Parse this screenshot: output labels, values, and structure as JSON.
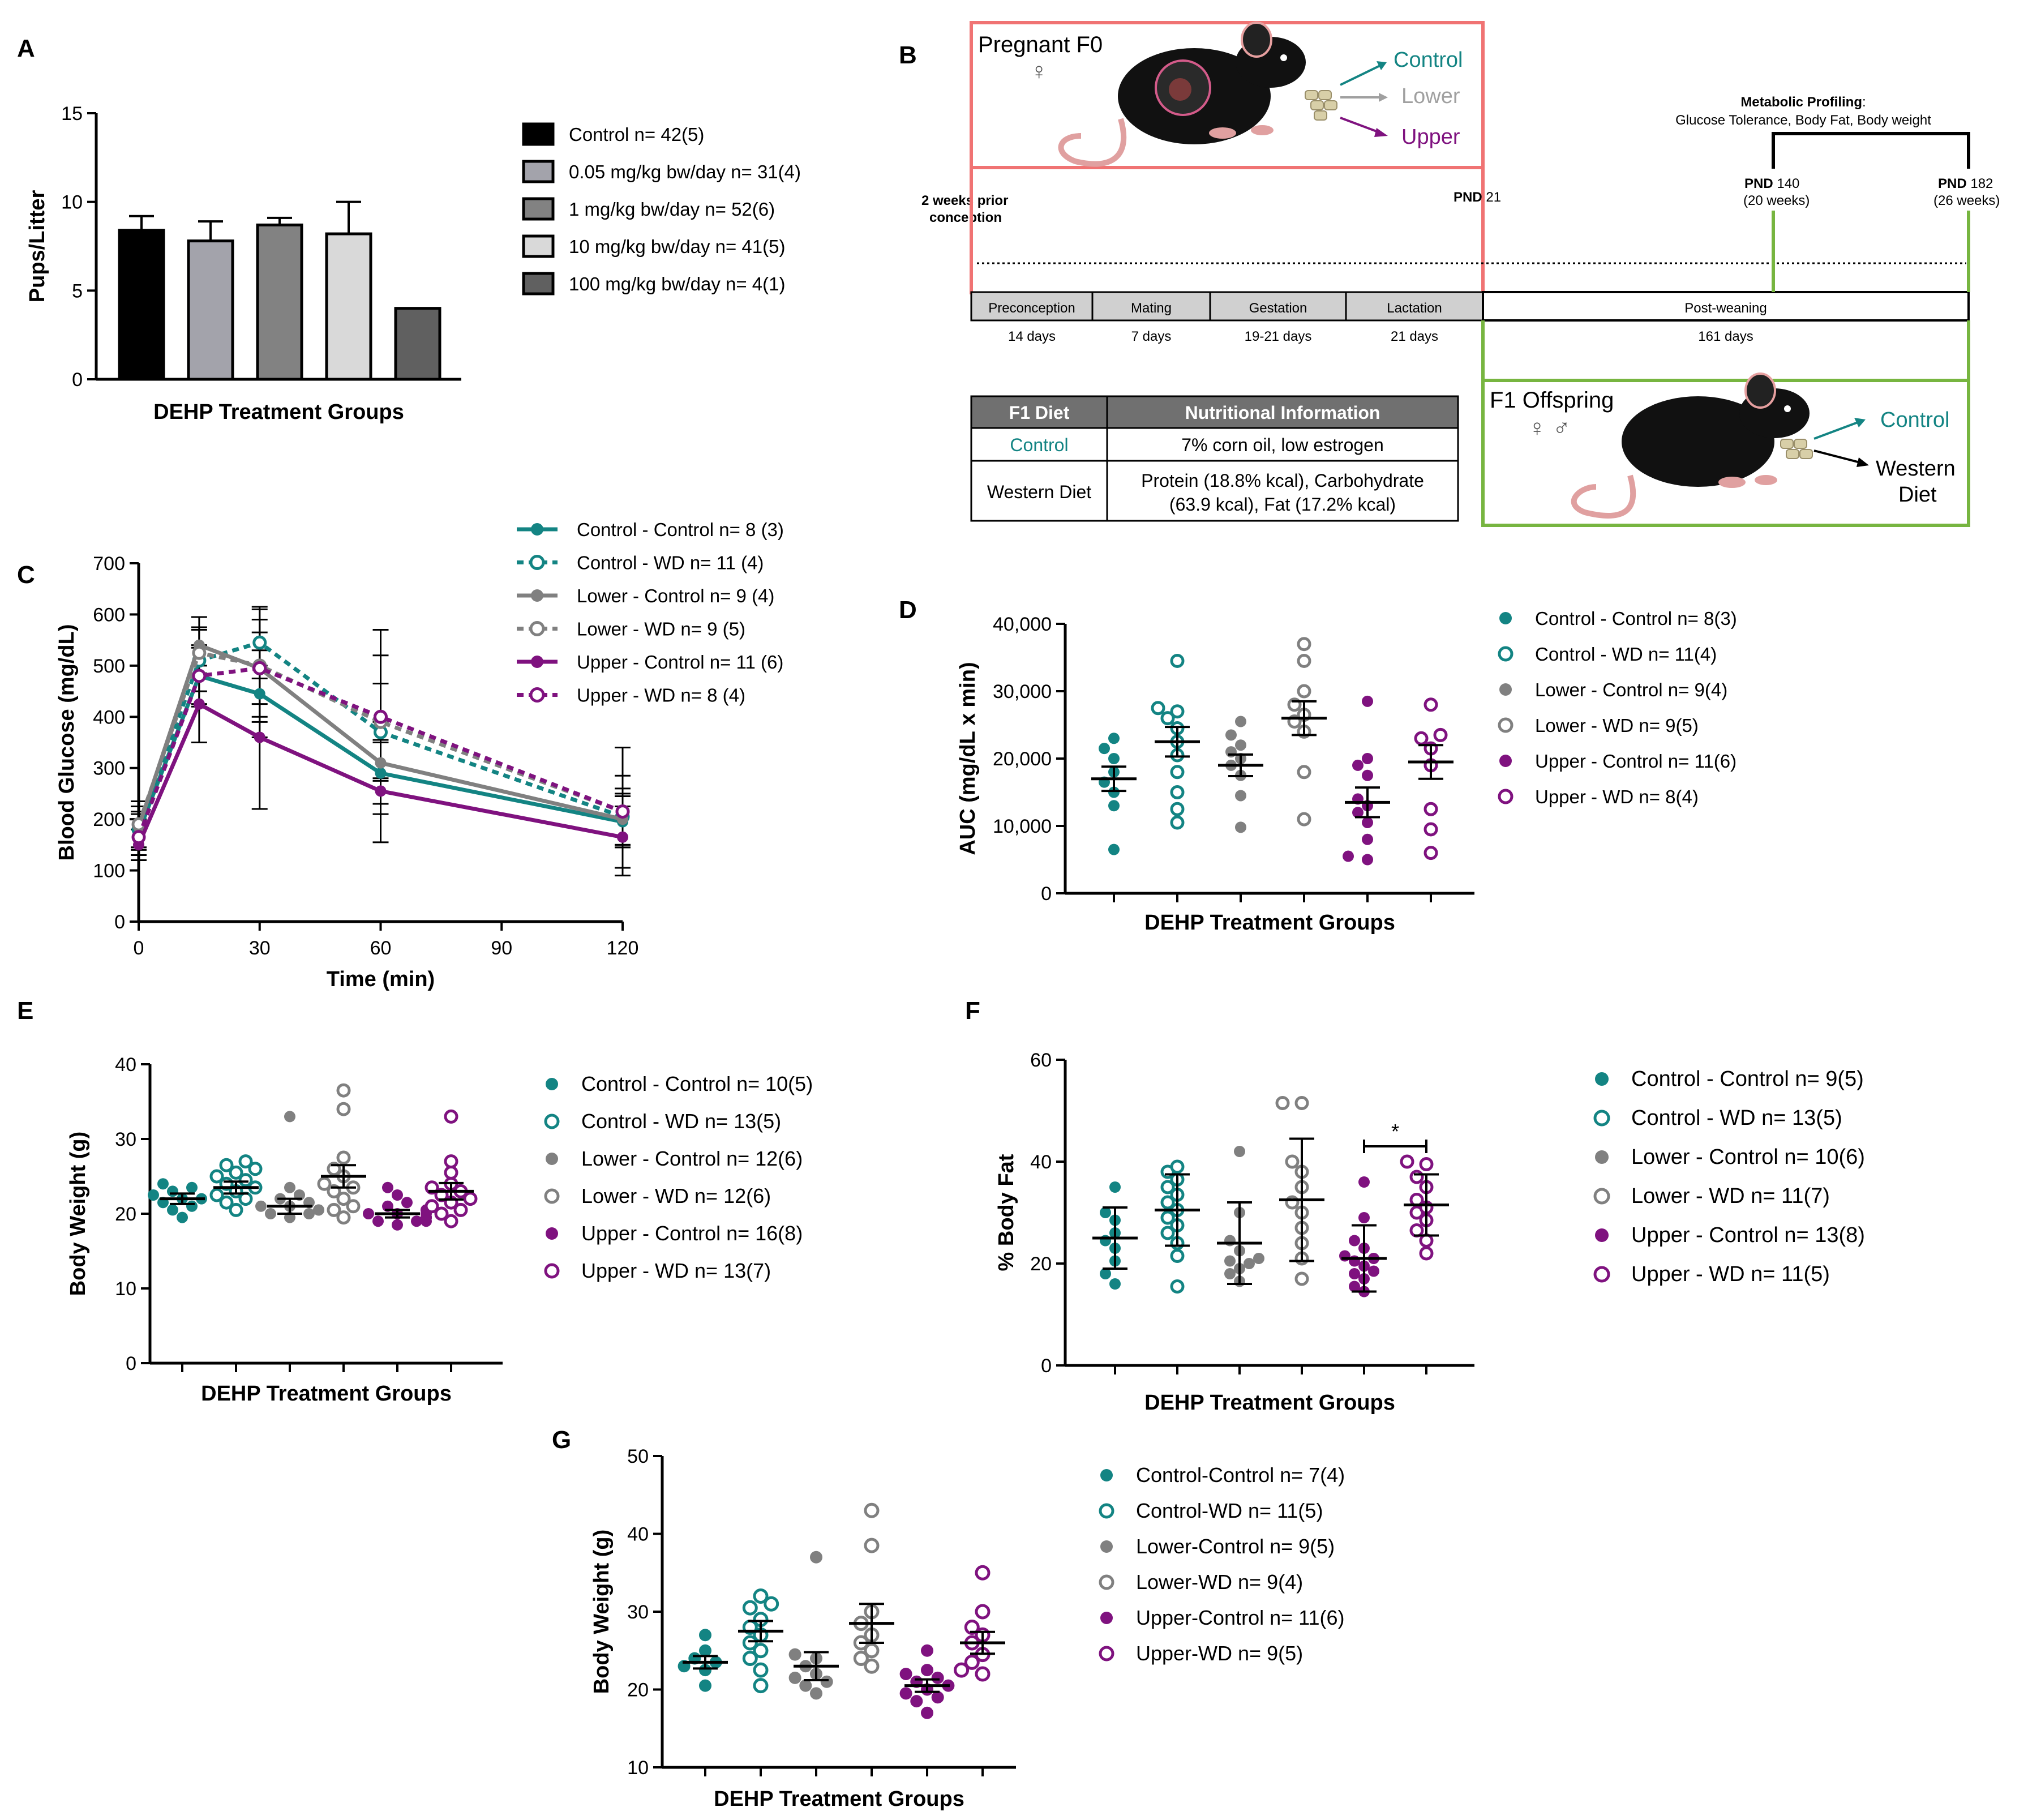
{
  "colors": {
    "teal": "#138483",
    "gray": "#808080",
    "purple": "#7f127f",
    "salmon": "#f07373",
    "green": "#77b540",
    "boxgray": "#d0d0d0",
    "headgray": "#707070"
  },
  "chart_data": [
    {
      "panel": "A",
      "type": "bar",
      "xlabel": "DEHP Treatment Groups",
      "ylabel": "Pups/Litter",
      "ylim": [
        0,
        15
      ],
      "yticks": [
        "0",
        "5",
        "10",
        "15"
      ],
      "legend_position": "right",
      "series": [
        {
          "name": "Control n= 42(5)",
          "value": 8.4,
          "err": 0.8,
          "color": "#000000"
        },
        {
          "name": "0.05 mg/kg bw/day n= 31(4)",
          "value": 7.8,
          "err": 1.1,
          "color": "#a3a3ab"
        },
        {
          "name": "1 mg/kg bw/day n= 52(6)",
          "value": 8.7,
          "err": 0.4,
          "color": "#828282"
        },
        {
          "name": "10 mg/kg bw/day n= 41(5)",
          "value": 8.2,
          "err": 1.8,
          "color": "#d9d9d9"
        },
        {
          "name": "100 mg/kg bw/day n= 4(1)",
          "value": 4.0,
          "err": 0,
          "color": "#606060"
        }
      ]
    },
    {
      "panel": "C",
      "type": "line",
      "xlabel": "Time (min)",
      "ylabel": "Blood Glucose (mg/dL)",
      "xlim": [
        0,
        120
      ],
      "ylim": [
        0,
        700
      ],
      "xticks": [
        "0",
        "30",
        "60",
        "90",
        "120"
      ],
      "yticks": [
        "0",
        "100",
        "200",
        "300",
        "400",
        "500",
        "600",
        "700"
      ],
      "x": [
        0,
        15,
        30,
        60,
        120
      ],
      "legend_position": "top-right",
      "series": [
        {
          "name": "Control - Control n= 8 (3)",
          "color": "#138483",
          "dashed": false,
          "filled": true,
          "values": [
            175,
            480,
            445,
            290,
            195
          ],
          "err": [
            35,
            60,
            85,
            60,
            50
          ]
        },
        {
          "name": "Control - WD n= 11 (4)",
          "color": "#138483",
          "dashed": true,
          "filled": false,
          "values": [
            180,
            510,
            545,
            370,
            205
          ],
          "err": [
            35,
            60,
            70,
            95,
            55
          ]
        },
        {
          "name": "Lower - Control n= 9 (4)",
          "color": "#808080",
          "dashed": false,
          "filled": true,
          "values": [
            185,
            540,
            495,
            310,
            200
          ],
          "err": [
            40,
            55,
            70,
            80,
            50
          ]
        },
        {
          "name": "Lower - WD n= 9 (5)",
          "color": "#808080",
          "dashed": true,
          "filled": false,
          "values": [
            190,
            525,
            500,
            390,
            215
          ],
          "err": [
            45,
            50,
            110,
            180,
            125
          ]
        },
        {
          "name": "Upper - Control n= 11 (6)",
          "color": "#7f127f",
          "dashed": false,
          "filled": true,
          "values": [
            150,
            425,
            360,
            255,
            165
          ],
          "err": [
            30,
            75,
            140,
            100,
            60
          ]
        },
        {
          "name": "Upper - WD n= 8 (4)",
          "color": "#7f127f",
          "dashed": true,
          "filled": false,
          "values": [
            165,
            480,
            495,
            400,
            215
          ],
          "err": [
            35,
            55,
            95,
            120,
            70
          ]
        }
      ]
    },
    {
      "panel": "D",
      "type": "scatter",
      "xlabel": "DEHP Treatment Groups",
      "ylabel": "AUC (mg/dL x min)",
      "ylim": [
        0,
        40000
      ],
      "yticks": [
        "0",
        "10,000",
        "20,000",
        "30,000",
        "40,000"
      ],
      "legend_position": "right",
      "groups": [
        {
          "name": "Control - Control n= 8(3)",
          "color": "#138483",
          "filled": true,
          "mean": 17000,
          "sem": 1800,
          "points": [
            6500,
            13000,
            15000,
            16500,
            18000,
            20000,
            21500,
            23000
          ]
        },
        {
          "name": "Control - WD n= 11(4)",
          "color": "#138483",
          "filled": false,
          "mean": 22500,
          "sem": 2200,
          "points": [
            10500,
            12500,
            15000,
            18000,
            20500,
            22500,
            24500,
            26000,
            27000,
            27500,
            34500
          ]
        },
        {
          "name": "Lower - Control n= 9(4)",
          "color": "#808080",
          "filled": true,
          "mean": 19000,
          "sem": 1600,
          "points": [
            9800,
            14500,
            17500,
            19000,
            20000,
            21000,
            22000,
            23500,
            25500
          ]
        },
        {
          "name": "Lower - WD n= 9(5)",
          "color": "#808080",
          "filled": false,
          "mean": 26000,
          "sem": 2500,
          "points": [
            11000,
            18000,
            24000,
            25500,
            26500,
            28000,
            30000,
            34500,
            37000
          ]
        },
        {
          "name": "Upper - Control n= 11(6)",
          "color": "#7f127f",
          "filled": true,
          "mean": 13500,
          "sem": 2200,
          "points": [
            5000,
            5500,
            8000,
            10500,
            12000,
            13000,
            14000,
            17500,
            19000,
            20000,
            28500
          ]
        },
        {
          "name": "Upper - WD n= 8(4)",
          "color": "#7f127f",
          "filled": false,
          "mean": 19500,
          "sem": 2500,
          "points": [
            6000,
            9500,
            12500,
            19000,
            21500,
            23000,
            23500,
            28000
          ]
        }
      ]
    },
    {
      "panel": "E",
      "type": "scatter",
      "xlabel": "DEHP Treatment Groups",
      "ylabel": "Body Weight (g)",
      "ylim": [
        0,
        40
      ],
      "yticks": [
        "0",
        "10",
        "20",
        "30",
        "40"
      ],
      "legend_position": "right",
      "groups": [
        {
          "name": "Control - Control n= 10(5)",
          "color": "#138483",
          "filled": true,
          "mean": 22,
          "sem": 0.7,
          "points": [
            19.5,
            20.5,
            21,
            21.5,
            22,
            22,
            22.5,
            23,
            23.5,
            24
          ]
        },
        {
          "name": "Control - WD n= 13(5)",
          "color": "#138483",
          "filled": false,
          "mean": 23.5,
          "sem": 0.8,
          "points": [
            20.5,
            21.5,
            22,
            22.5,
            23,
            23.5,
            24,
            24.5,
            25,
            25.5,
            26,
            26.5,
            27
          ]
        },
        {
          "name": "Lower - Control n= 12(6)",
          "color": "#808080",
          "filled": true,
          "mean": 21,
          "sem": 1.0,
          "points": [
            19.5,
            20,
            20,
            20.5,
            20.5,
            21,
            21,
            21.5,
            22,
            22.5,
            23.5,
            33
          ]
        },
        {
          "name": "Lower - WD n= 12(6)",
          "color": "#808080",
          "filled": false,
          "mean": 25,
          "sem": 1.5,
          "points": [
            19.5,
            20.5,
            21,
            22,
            23,
            23.5,
            24,
            25,
            26,
            27.5,
            34,
            36.5
          ]
        },
        {
          "name": "Upper - Control n= 16(8)",
          "color": "#7f127f",
          "filled": true,
          "mean": 20,
          "sem": 0.5,
          "points": [
            18.5,
            19,
            19,
            19,
            19.5,
            19.5,
            19.5,
            20,
            20,
            20,
            20.5,
            20.5,
            21,
            21.5,
            22.5,
            23.5
          ]
        },
        {
          "name": "Upper - WD n= 13(7)",
          "color": "#7f127f",
          "filled": false,
          "mean": 23,
          "sem": 1.1,
          "points": [
            19,
            20,
            20.5,
            21,
            21.5,
            22,
            22.5,
            23,
            23.5,
            24,
            25.5,
            27,
            33
          ]
        }
      ]
    },
    {
      "panel": "F",
      "type": "scatter",
      "xlabel": "DEHP Treatment Groups",
      "ylabel": "% Body Fat",
      "ylim": [
        0,
        60
      ],
      "yticks": [
        "0",
        "20",
        "40",
        "60"
      ],
      "legend_position": "right",
      "annotation": "*",
      "groups": [
        {
          "name": "Control - Control n= 9(5)",
          "color": "#138483",
          "filled": true,
          "mean": 25,
          "sd": 6,
          "points": [
            16,
            18,
            20.5,
            23,
            24.5,
            26,
            28.5,
            30,
            35
          ]
        },
        {
          "name": "Control - WD n= 13(5)",
          "color": "#138483",
          "filled": false,
          "mean": 30.5,
          "sd": 7,
          "points": [
            15.5,
            21.5,
            24,
            26,
            27.5,
            29,
            30.5,
            32,
            33.5,
            35,
            36.5,
            38,
            39
          ]
        },
        {
          "name": "Lower - Control n= 10(6)",
          "color": "#808080",
          "filled": true,
          "mean": 24,
          "sd": 8,
          "points": [
            16.5,
            18,
            19,
            20,
            20.5,
            21,
            22.5,
            24.5,
            30,
            42
          ]
        },
        {
          "name": "Lower - WD n= 11(7)",
          "color": "#808080",
          "filled": false,
          "mean": 32.5,
          "sd": 12,
          "points": [
            17,
            21,
            24,
            27,
            30,
            32,
            35,
            38,
            40,
            51.5,
            51.5
          ]
        },
        {
          "name": "Upper - Control n= 13(8)",
          "color": "#7f127f",
          "filled": true,
          "mean": 21,
          "sd": 6.5,
          "points": [
            14.5,
            15.5,
            17,
            18,
            18.5,
            19.5,
            20.5,
            21,
            21.5,
            23,
            24.5,
            29,
            36
          ]
        },
        {
          "name": "Upper - WD n= 11(5)",
          "color": "#7f127f",
          "filled": false,
          "mean": 31.5,
          "sd": 6,
          "points": [
            22,
            24.5,
            26.5,
            28.5,
            30,
            31,
            32.5,
            35,
            37,
            39.5,
            40
          ]
        }
      ]
    },
    {
      "panel": "G",
      "type": "scatter",
      "xlabel": "DEHP Treatment Groups",
      "ylabel": "Body Weight (g)",
      "ylim": [
        10,
        50
      ],
      "yticks": [
        "10",
        "20",
        "30",
        "40",
        "50"
      ],
      "legend_position": "right",
      "groups": [
        {
          "name": "Control-Control n= 7(4)",
          "color": "#138483",
          "filled": true,
          "mean": 23.5,
          "sem": 0.8,
          "points": [
            20.5,
            22.5,
            23,
            23.5,
            24,
            25,
            27
          ]
        },
        {
          "name": "Control-WD n= 11(5)",
          "color": "#138483",
          "filled": false,
          "mean": 27.5,
          "sem": 1.3,
          "points": [
            20.5,
            22.5,
            24,
            25,
            26,
            27,
            28,
            29,
            30.5,
            31,
            32
          ]
        },
        {
          "name": "Lower-Control n= 9(5)",
          "color": "#808080",
          "filled": true,
          "mean": 23,
          "sem": 1.8,
          "points": [
            19.5,
            20.5,
            21,
            21.5,
            22,
            23,
            24,
            24.5,
            37
          ]
        },
        {
          "name": "Lower-WD n= 9(4)",
          "color": "#808080",
          "filled": false,
          "mean": 28.5,
          "sem": 2.5,
          "points": [
            23,
            24,
            25,
            26,
            27,
            28.5,
            30,
            38.5,
            43
          ]
        },
        {
          "name": "Upper-Control n= 11(6)",
          "color": "#7f127f",
          "filled": true,
          "mean": 20.5,
          "sem": 0.8,
          "points": [
            17,
            18.5,
            19,
            19.5,
            20,
            20.5,
            21,
            21.5,
            22,
            22.5,
            25
          ]
        },
        {
          "name": "Upper-WD n= 9(5)",
          "color": "#7f127f",
          "filled": false,
          "mean": 26,
          "sem": 1.4,
          "points": [
            22,
            22.5,
            23.5,
            24.5,
            26,
            27,
            28,
            30,
            35
          ]
        }
      ]
    }
  ],
  "panel_letters": [
    "A",
    "B",
    "C",
    "D",
    "E",
    "F",
    "G"
  ],
  "diagram": {
    "f0_title": "Pregnant F0",
    "female_symbol": "♀",
    "f0_arrows": [
      "Control",
      "Lower",
      "Upper"
    ],
    "pre_conception": "2 weeks prior conception",
    "pnd21": [
      "PND",
      " 21"
    ],
    "metabolic_title": "Metabolic Profiling",
    "metabolic_colon": ":",
    "metabolic_sub": "Glucose Tolerance, Body Fat, Body weight",
    "pnd140": [
      "PND",
      " 140"
    ],
    "pnd140_weeks": "(20 weeks)",
    "pnd182": [
      "PND",
      " 182"
    ],
    "pnd182_weeks": "(26 weeks)",
    "phases": [
      {
        "label": "Preconception",
        "duration": "14 days"
      },
      {
        "label": "Mating",
        "duration": "7 days"
      },
      {
        "label": "Gestation",
        "duration": "19-21 days"
      },
      {
        "label": "Lactation",
        "duration": "21 days"
      },
      {
        "label": "Post-weaning",
        "duration": "161 days"
      }
    ],
    "f1_title": "F1 Offspring",
    "f1_symbols": "♀ ♂",
    "f1_arrows": [
      "Control",
      "Western",
      "Diet"
    ],
    "table": {
      "headers": [
        "F1 Diet",
        "Nutritional Information"
      ],
      "rows": [
        [
          "Control",
          "7% corn oil, low estrogen"
        ],
        [
          "Western Diet",
          "Protein (18.8% kcal), Carbohydrate",
          "(63.9 kcal), Fat (17.2% kcal)"
        ]
      ]
    }
  }
}
